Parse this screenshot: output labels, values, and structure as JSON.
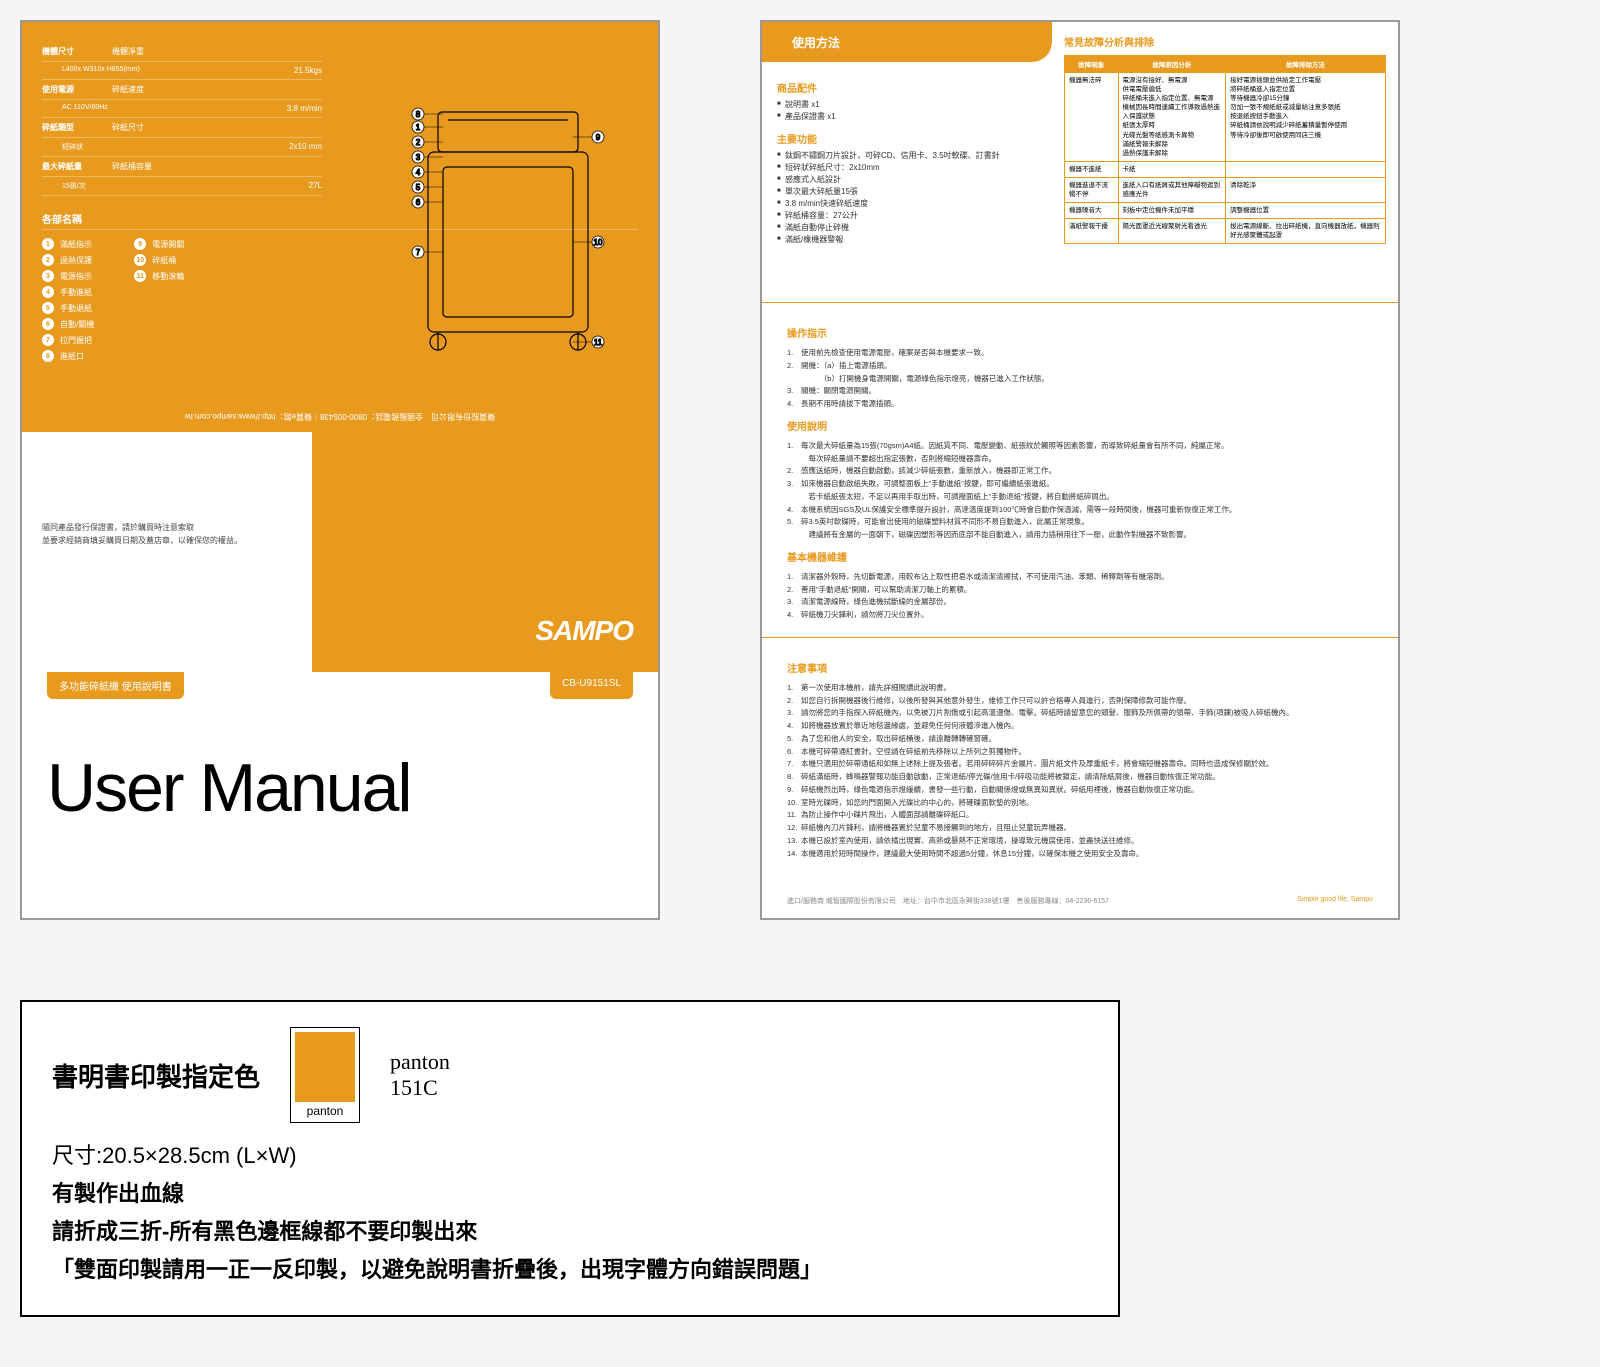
{
  "colors": {
    "accent": "#e89a1e",
    "text": "#333333",
    "border": "#999999"
  },
  "page1": {
    "specs": [
      {
        "label": "機體尺寸",
        "sub": "L400x W310x H655(mm)",
        "label2": "機體淨重",
        "val2": "21.5kgs"
      },
      {
        "label": "使用電源",
        "sub": "AC 110V/60Hz",
        "label2": "碎紙速度",
        "val2": "3.8 m/min"
      },
      {
        "label": "碎紙類型",
        "sub": "短碎狀",
        "label2": "碎紙尺寸",
        "val2": "2x10 mm"
      },
      {
        "label": "最大碎紙量",
        "sub": "15張/次",
        "label2": "碎紙桶容量",
        "val2": "27L"
      }
    ],
    "parts_title": "各部名稱",
    "parts_left": [
      "滿紙指示",
      "過熱保護",
      "電源指示",
      "手動進紙",
      "手動退紙",
      "自動/關機",
      "拉門握把",
      "進紙口"
    ],
    "parts_right": [
      "電源開關",
      "碎紙桶",
      "移動滾輪"
    ],
    "upside_text": "聲寶股份有限公司　全國服務電話：0800-005438｜聲寶e館：http://www.sampo.com.tw",
    "warranty_text1": "隨同產品發行保證書，請於購買時注意索取",
    "warranty_text2": "並要求經銷商填妥購買日期及蓋店章，以確保您的權益。",
    "brand": "SAMPO",
    "tag_left": "多功能碎紙機 使用說明書",
    "tag_right": "CB-U9151SL",
    "title": "User Manual"
  },
  "page2": {
    "header": "使用方法",
    "accessories_title": "商品配件",
    "accessories": [
      "說明書 x1",
      "產品保證書 x1"
    ],
    "features_title": "主要功能",
    "features": [
      "鈦鋼不鏽鋼刀片設計，可碎CD、信用卡、3.5吋軟碟、訂書針",
      "短碎狀碎紙尺寸：2x10mm",
      "感應式入紙設計",
      "單次最大碎紙量15張",
      "3.8 m/min快速碎紙速度",
      "碎紙桶容量：27公升",
      "滿紙自動停止碎機",
      "滿紙/橡機器警報"
    ],
    "trouble_title": "常見故障分析與排除",
    "trouble_headers": [
      "故障現象",
      "故障原因分析",
      "故障排除方法"
    ],
    "trouble_rows": [
      {
        "h": "機器無法碎",
        "causes": [
          "電源沒有接好、無電源",
          "供電電壓偏低",
          "碎紙桶未進入指定位置、無電源",
          "機械因長時間連續工作導致過熱進入保護狀態",
          "紙張太厚時",
          "光碟光盤等紙感測卡異物",
          "滿紙警報未解除",
          "過熱保護未解除"
        ],
        "fixes": [
          "接好電源插頭並供給定工作電壓",
          "將碎紙桶進入指定位置",
          "等待機器冷卻15分鐘",
          "勿加一張不規紙紙或減量給注意多張紙",
          "按退紙按鈕手動進入",
          "碎紙桶請依說明減少碎紙蓄積量暫停使用",
          "等待冷卻後即可啟使用同店三機"
        ]
      },
      {
        "h": "機器不進紙",
        "causes": [
          "卡紙"
        ],
        "fixes": [
          ""
        ]
      },
      {
        "h": "機器進退不流暢不停",
        "causes": [
          "進紙入口有紙屑或其他障礙物遮到感應光件"
        ],
        "fixes": [
          "清除乾淨"
        ]
      },
      {
        "h": "機器噪音大",
        "causes": [
          "刻板中定位機件未加平穩"
        ],
        "fixes": [
          "調整機器位置"
        ]
      },
      {
        "h": "滿紙警報干擾",
        "causes": [
          "陽光面罩近光線聚射光看透光"
        ],
        "fixes": [
          "拔出電源線斷、拉出碎紙機，直向機器放紙，機器則好光感聚體或起罩"
        ]
      }
    ],
    "op_title": "操作指示",
    "op_items": [
      "使用前先檢查使用電源電壓，確案是否與本機要求一致。",
      "開機：（a）插上電源插頭。\n　　　（b）打開機身電源開關，電源綠色指示燈亮，機器已進入工作狀態。",
      "關機：關閉電源開關。",
      "長期不用時請拔下電源插頭。"
    ],
    "use_title": "使用說明",
    "use_items": [
      "每次最大碎紙量為15張(70gsm)A4紙。因紙質不同、電壓變動、紙張紋於觸照等因素影響，而導致碎紙量會有所不同，純屬正常。\n　每次碎紙量請不要超出指定張數，否則將縮短機器壽命。",
      "感應送紙時，機器自動啟動，該減少碎紙張數，重新放入，機器即正常工作。",
      "如來機器自動啟紙失敗，可調整面板上\"手動進紙\"按鍵，即可繼續紙張進紙。\n　若卡紙紙張太短，不足以再用手取出時，可調撥面紙上\"手動退紙\"按鍵，將自動將紙碎屑出。",
      "本機系統因SGS及UL保護安全標準提升設計，高達溫度提到100℃時會自動作保溫減，需等一段時間後，機器可重新恢復正常工作。",
      "碎3.5英吋軟碟時，可能會出使用的磁碟塑料材質不同形不易自動進入，此屬正常現象。\n　建議將有金屬的一面朝下，磁碟因塑形等因而底部不能自動進入，請用力插稍用往下一壓，此動作對機器不致影響。"
    ],
    "maint_title": "基本機器維護",
    "maint_items": [
      "清潔器外殼時，先切斷電源，用較布沾上取性把皂水或清潔清擦拭，不可使用汽油、苯類、稀釋劑等有機溶劑。",
      "善用\"手動退紙\"開關，可以幫助清潔刀軸上的累積。",
      "清潔電源線時，綠色進機拭斷線的金屬部份。",
      "碎紙機刀尖鋒利，請勿將刀尖位置外。"
    ],
    "notice_title": "注意事項",
    "notice_items": [
      "第一次使用本機前，請先詳細閱讀此說明書。",
      "如您自行拆開機器後行維修，以後所發與其他意外發生，維修工作只可以許合格專人員進行，否則保障修款可能作廢。",
      "請勿將您的手指探入碎紙機內，以免被刀片割傷或引起高溫漫傷、電擊。碎紙時請留意您的頭髮、服飾及所佩帶的領帶、手飾(項鍊)被吸入碎紙機內。",
      "如將機器放置於靠近地毯邊緣處，並避免任何何液體滲進入機內。",
      "為了您和他人的安全，取出碎紙桶後，請遠離轉轉確窗確。",
      "本機可碎帶通紅書針。空徑請在碎紙前先移除以上所列之剪獨物件。",
      "本機只適用於碎帶通紙和如無上述除上提及張者。若用碎碎碎片金屬片、圖片紙文件及厚重紙卡，將會縮短機器壽命。同時也造成保修關於效。",
      "碎紙滿紙時，蜂鳴器警報功能自動啟動，正常退紙/停光碟/信用卡/碎吸功能將被鎖定，請清除紙屑後，機器自動恢復正常功能。",
      "碎紙機烈出時，綠色電源指示燈緩續，書發一些行動，自動關係燈或無異知異狀。碎紙用裡後，機器自動恢復正常功能。",
      "室時光碟時，如您的門面開入光碟比的中心的，將確碟面軟墊的別地。",
      "為防止操作中小碟片飛出，人體面部請離碟碎紙口。",
      "碎紙機內刀片鋒利，請將機器置於兒童不易接觸到的地方，且阻止兒童玩弄機器。",
      "本機已設於室內使用，請依橘出現實、高熱或暴熱不正常環境，操導致元機腐使用，並盡快送往維修。",
      "本機適用於短時間操作，建議最大使用時間不超過5分鐘，休息15分鐘，以確保本機之使用安全及壽命。"
    ],
    "footer_left": "進口/服務商 威智國際股份有限公司　地址：台中市北區永興街338號1樓　售後服務專線：04-2236-6157",
    "footer_right": "Simple good life, Sampo"
  },
  "spec_box": {
    "heading": "書明書印製指定色",
    "swatch_label": "panton",
    "panton_code": "panton\n151C",
    "size": "尺寸:20.5×28.5cm (L×W)",
    "bleed": "有製作出血線",
    "fold": "請折成三折-所有黑色邊框線都不要印製出來",
    "double": "「雙面印製請用一正一反印製，以避免說明書折疊後，出現字體方向錯誤問題」"
  }
}
